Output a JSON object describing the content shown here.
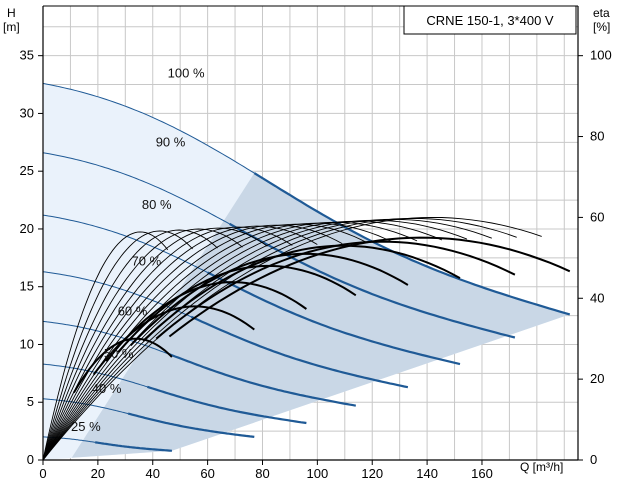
{
  "chart_data": {
    "type": "line",
    "title": "CRNE 150-1, 3*400 V",
    "x_axis": {
      "label": "Q [m³/h]",
      "ticks": [
        0,
        20,
        40,
        60,
        80,
        100,
        120,
        140,
        160
      ],
      "range": [
        0,
        195
      ]
    },
    "y_axis_left": {
      "label_line1": "H",
      "label_line2": "[m]",
      "ticks": [
        0,
        5,
        10,
        15,
        20,
        25,
        30,
        35
      ],
      "range": [
        0,
        35
      ]
    },
    "y_axis_right": {
      "label_line1": "eta",
      "label_line2": "[%]",
      "ticks": [
        0,
        20,
        40,
        60,
        80,
        100
      ],
      "range": [
        0,
        100
      ]
    },
    "grid": true,
    "speed_curves": [
      {
        "name": "100 %",
        "shutoff_head": 32.6,
        "end_flow": 192,
        "end_head": 12.6,
        "knee": 77
      },
      {
        "name": "90 %",
        "shutoff_head": 26.6,
        "end_flow": 172,
        "end_head": 10.6,
        "knee": 68
      },
      {
        "name": "80 %",
        "shutoff_head": 21.2,
        "end_flow": 152,
        "end_head": 8.3,
        "knee": 60
      },
      {
        "name": "70 %",
        "shutoff_head": 16.3,
        "end_flow": 133,
        "end_head": 6.3,
        "knee": 54
      },
      {
        "name": "60 %",
        "shutoff_head": 12.0,
        "end_flow": 114,
        "end_head": 4.7,
        "knee": 46
      },
      {
        "name": "50 %",
        "shutoff_head": 8.3,
        "end_flow": 96,
        "end_head": 3.2,
        "knee": 38
      },
      {
        "name": "40 %",
        "shutoff_head": 5.3,
        "end_flow": 77,
        "end_head": 2.0,
        "knee": 31
      },
      {
        "name": "25 %",
        "shutoff_head": 2.0,
        "end_flow": 47,
        "end_head": 0.8,
        "knee": 19
      }
    ],
    "efficiency_curves": {
      "peak_flow_at_full_speed": 142,
      "peak_eta": 60,
      "speeds": [
        1.0,
        0.95,
        0.9,
        0.85,
        0.8,
        0.75,
        0.7,
        0.65,
        0.6,
        0.55,
        0.5,
        0.45,
        0.4,
        0.35,
        0.3,
        0.25
      ],
      "operating_envelope_eta": [
        {
          "peak_eta": 55,
          "end_flow": 192
        },
        {
          "peak_eta": 54,
          "end_flow": 172
        },
        {
          "peak_eta": 53,
          "end_flow": 152
        },
        {
          "peak_eta": 51,
          "end_flow": 133
        },
        {
          "peak_eta": 48,
          "end_flow": 114
        },
        {
          "peak_eta": 44,
          "end_flow": 96
        },
        {
          "peak_eta": 38,
          "end_flow": 77
        },
        {
          "peak_eta": 30,
          "end_flow": 47
        }
      ]
    }
  }
}
